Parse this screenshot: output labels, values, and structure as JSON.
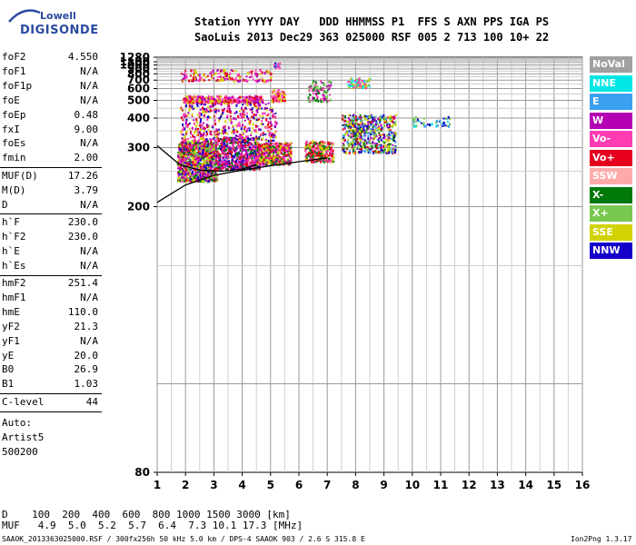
{
  "logo": {
    "line1": "Lowell",
    "line2": "DIGISONDE"
  },
  "header": {
    "line1": "Station YYYY DAY   DDD HHMMSS P1  FFS S AXN PPS IGA PS",
    "line2": "SaoLuis 2013 Dec29 363 025000 RSF 005 2 713 100 10+ 22"
  },
  "params": {
    "groups": [
      [
        {
          "name": "foF2",
          "value": "4.550"
        },
        {
          "name": "foF1",
          "value": "N/A"
        },
        {
          "name": "foF1p",
          "value": "N/A"
        },
        {
          "name": "foE",
          "value": "N/A"
        },
        {
          "name": "foEp",
          "value": "0.48"
        },
        {
          "name": "fxI",
          "value": "9.00"
        },
        {
          "name": "foEs",
          "value": "N/A"
        },
        {
          "name": "fmin",
          "value": "2.00"
        }
      ],
      [
        {
          "name": "MUF(D)",
          "value": "17.26"
        },
        {
          "name": "M(D)",
          "value": "3.79"
        },
        {
          "name": "D",
          "value": "N/A"
        }
      ],
      [
        {
          "name": "h`F",
          "value": "230.0"
        },
        {
          "name": "h`F2",
          "value": "230.0"
        },
        {
          "name": "h`E",
          "value": "N/A"
        },
        {
          "name": "h`Es",
          "value": "N/A"
        }
      ],
      [
        {
          "name": "hmF2",
          "value": "251.4"
        },
        {
          "name": "hmF1",
          "value": "N/A"
        },
        {
          "name": "hmE",
          "value": "110.0"
        },
        {
          "name": "yF2",
          "value": "21.3"
        },
        {
          "name": "yF1",
          "value": "N/A"
        },
        {
          "name": "yE",
          "value": "20.0"
        },
        {
          "name": "B0",
          "value": "26.9"
        },
        {
          "name": "B1",
          "value": "1.03"
        }
      ],
      [
        {
          "name": "C-level",
          "value": "44"
        }
      ]
    ],
    "auto_lines": [
      "Auto:",
      "Artist5",
      "500200"
    ]
  },
  "legend": [
    {
      "label": "NoVal",
      "color": "#a0a0a0"
    },
    {
      "label": "NNE",
      "color": "#00e6e6"
    },
    {
      "label": "E",
      "color": "#3ca0f0"
    },
    {
      "label": "W",
      "color": "#b400b4"
    },
    {
      "label": "Vo-",
      "color": "#ff3cb4"
    },
    {
      "label": "Vo+",
      "color": "#e6001e"
    },
    {
      "label": "SSW",
      "color": "#ffaaaa"
    },
    {
      "label": "X-",
      "color": "#00780a"
    },
    {
      "label": "X+",
      "color": "#78c850"
    },
    {
      "label": "SSE",
      "color": "#d2d200"
    },
    {
      "label": "NNW",
      "color": "#1400c8"
    }
  ],
  "chart_data": {
    "type": "scatter",
    "title": "",
    "xlabel": "",
    "ylabel": "",
    "x_ticks": [
      1,
      2,
      3,
      4,
      5,
      6,
      7,
      8,
      9,
      10,
      11,
      12,
      13,
      14,
      15,
      16
    ],
    "y_ticks": [
      80,
      200,
      300,
      400,
      500,
      600,
      700,
      800,
      900,
      1000,
      1100,
      1280
    ],
    "xlim": [
      1,
      16
    ],
    "ylim": [
      80,
      1280
    ],
    "y_scale": "reciprocal",
    "grid": true,
    "clusters": [
      {
        "x": [
          1.7,
          3.1
        ],
        "y": [
          235,
          320
        ],
        "weight": 1200,
        "colors": [
          "#e6001e",
          "#ff3cb4",
          "#b400b4",
          "#1400c8",
          "#78c850",
          "#00780a",
          "#d2d200"
        ]
      },
      {
        "x": [
          3.1,
          4.6
        ],
        "y": [
          255,
          330
        ],
        "weight": 650,
        "colors": [
          "#e6001e",
          "#ff3cb4",
          "#b400b4",
          "#1400c8",
          "#00780a"
        ]
      },
      {
        "x": [
          4.5,
          5.7
        ],
        "y": [
          265,
          315
        ],
        "weight": 450,
        "colors": [
          "#e6001e",
          "#ff3cb4",
          "#d2d200",
          "#00780a",
          "#b400b4"
        ]
      },
      {
        "x": [
          6.2,
          7.2
        ],
        "y": [
          270,
          320
        ],
        "weight": 300,
        "colors": [
          "#e6001e",
          "#ff3cb4",
          "#d2d200",
          "#00780a"
        ]
      },
      {
        "x": [
          7.5,
          9.4
        ],
        "y": [
          290,
          420
        ],
        "weight": 600,
        "colors": [
          "#1400c8",
          "#b400b4",
          "#00780a",
          "#78c850",
          "#e6001e",
          "#d2d200",
          "#3ca0f0"
        ]
      },
      {
        "x": [
          10.0,
          11.3
        ],
        "y": [
          370,
          410
        ],
        "weight": 50,
        "colors": [
          "#00e6e6",
          "#3ca0f0",
          "#78c850",
          "#1400c8"
        ]
      },
      {
        "x": [
          1.9,
          4.7
        ],
        "y": [
          490,
          540
        ],
        "weight": 350,
        "colors": [
          "#ff3cb4",
          "#e6001e",
          "#d2d200",
          "#b400b4"
        ]
      },
      {
        "x": [
          5.0,
          5.5
        ],
        "y": [
          500,
          600
        ],
        "weight": 80,
        "colors": [
          "#d2d200",
          "#ff3cb4",
          "#e6001e"
        ]
      },
      {
        "x": [
          6.3,
          7.1
        ],
        "y": [
          500,
          700
        ],
        "weight": 100,
        "colors": [
          "#78c850",
          "#ff3cb4",
          "#b400b4",
          "#00780a"
        ]
      },
      {
        "x": [
          7.7,
          8.5
        ],
        "y": [
          620,
          740
        ],
        "weight": 80,
        "colors": [
          "#78c850",
          "#00e6e6",
          "#d2d200",
          "#ff3cb4"
        ]
      },
      {
        "x": [
          1.8,
          5.0
        ],
        "y": [
          700,
          900
        ],
        "weight": 180,
        "colors": [
          "#d2d200",
          "#ff3cb4",
          "#e6001e",
          "#b400b4"
        ]
      },
      {
        "x": [
          1.8,
          5.2
        ],
        "y": [
          320,
          490
        ],
        "weight": 500,
        "colors": [
          "#ff3cb4",
          "#b400b4",
          "#e6001e",
          "#d2d200",
          "#1400c8"
        ]
      },
      {
        "x": [
          5.1,
          5.3
        ],
        "y": [
          950,
          1100
        ],
        "weight": 20,
        "colors": [
          "#1400c8",
          "#3ca0f0",
          "#ff3cb4"
        ]
      }
    ],
    "curves": [
      {
        "name": "upper",
        "x": [
          1.0,
          1.8,
          2.5,
          3.3,
          4.0,
          4.5
        ],
        "y": [
          305,
          262,
          252,
          250,
          254,
          262
        ]
      },
      {
        "name": "lower",
        "x": [
          1.0,
          2.0,
          3.0,
          4.0,
          5.0,
          6.0,
          7.0
        ],
        "y": [
          205,
          228,
          243,
          252,
          260,
          268,
          276
        ]
      }
    ]
  },
  "footer": {
    "d_line": "D    100  200  400  600  800 1000 1500 3000 [km]",
    "muf_line": "MUF   4.9  5.0  5.2  5.7  6.4  7.3 10.1 17.3 [MHz]",
    "bottom_left": "SAAOK_2013363025000.RSF / 300fx256h 50 kHz 5.0 km / DPS-4 SAAOK 903 / 2.6 S 315.8 E",
    "bottom_right": "Ion2Png 1.3.17"
  }
}
